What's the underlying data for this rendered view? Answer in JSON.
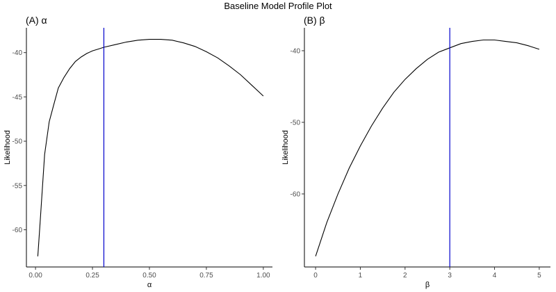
{
  "figure_title": "Baseline Model Profile Plot",
  "colors": {
    "curve": "#000000",
    "reference_line": "#0000cc"
  },
  "chart_data": [
    {
      "type": "line",
      "title": "(A) α",
      "xlabel": "α",
      "ylabel": "Likelihood",
      "xlim": [
        -0.04,
        1.04
      ],
      "ylim": [
        -64.2,
        -37.2
      ],
      "xticks": [
        0.0,
        0.25,
        0.5,
        0.75,
        1.0
      ],
      "xtick_labels": [
        "0.00",
        "0.25",
        "0.50",
        "0.75",
        "1.00"
      ],
      "yticks": [
        -60,
        -55,
        -50,
        -45,
        -40
      ],
      "ytick_labels": [
        "-60",
        "-55",
        "-50",
        "-45",
        "-40"
      ],
      "reference_x": 0.3,
      "grid": false,
      "series": [
        {
          "x": [
            0.01,
            0.02,
            0.04,
            0.06,
            0.08,
            0.1,
            0.125,
            0.15,
            0.175,
            0.2,
            0.225,
            0.25,
            0.275,
            0.3,
            0.35,
            0.4,
            0.45,
            0.5,
            0.55,
            0.6,
            0.65,
            0.7,
            0.75,
            0.8,
            0.85,
            0.9,
            0.95,
            1.0
          ],
          "y": [
            -63.0,
            -59.2,
            -51.5,
            -47.8,
            -45.9,
            -44.0,
            -42.8,
            -41.8,
            -41.0,
            -40.5,
            -40.1,
            -39.8,
            -39.6,
            -39.4,
            -39.1,
            -38.8,
            -38.6,
            -38.5,
            -38.5,
            -38.6,
            -38.9,
            -39.3,
            -39.9,
            -40.6,
            -41.5,
            -42.5,
            -43.7,
            -44.9
          ]
        }
      ]
    },
    {
      "type": "line",
      "title": "(B) β",
      "xlabel": "β",
      "ylabel": "Likelihood",
      "xlim": [
        -0.25,
        5.25
      ],
      "ylim": [
        -70.2,
        -36.8
      ],
      "xticks": [
        0,
        1,
        2,
        3,
        4,
        5
      ],
      "xtick_labels": [
        "0",
        "1",
        "2",
        "3",
        "4",
        "5"
      ],
      "yticks": [
        -60,
        -50,
        -40
      ],
      "ytick_labels": [
        "-60",
        "-50",
        "-40"
      ],
      "reference_x": 3.0,
      "grid": false,
      "series": [
        {
          "x": [
            0.0,
            0.25,
            0.5,
            0.75,
            1.0,
            1.25,
            1.5,
            1.75,
            2.0,
            2.25,
            2.5,
            2.75,
            3.0,
            3.25,
            3.5,
            3.75,
            4.0,
            4.25,
            4.5,
            4.75,
            5.0
          ],
          "y": [
            -68.7,
            -64.0,
            -60.0,
            -56.4,
            -53.3,
            -50.5,
            -48.0,
            -45.8,
            -44.0,
            -42.5,
            -41.2,
            -40.2,
            -39.6,
            -39.0,
            -38.7,
            -38.5,
            -38.5,
            -38.7,
            -38.9,
            -39.3,
            -39.8
          ]
        }
      ]
    }
  ]
}
